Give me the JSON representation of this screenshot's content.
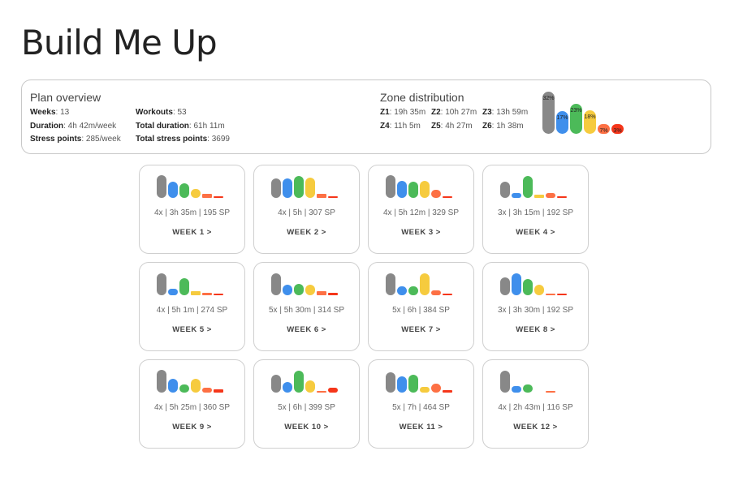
{
  "page": {
    "title": "Build Me Up"
  },
  "overview": {
    "heading": "Plan overview",
    "stats": [
      {
        "label": "Weeks",
        "value": "13"
      },
      {
        "label": "Workouts",
        "value": "53"
      },
      {
        "label": "Duration",
        "value": "4h 42m/week"
      },
      {
        "label": "Total duration",
        "value": "61h 11m"
      },
      {
        "label": "Stress points",
        "value": "285/week"
      },
      {
        "label": "Total stress points",
        "value": "3699"
      }
    ]
  },
  "zones": {
    "heading": "Zone distribution",
    "items": [
      {
        "label": "Z1",
        "value": "19h 35m"
      },
      {
        "label": "Z2",
        "value": "10h 27m"
      },
      {
        "label": "Z3",
        "value": "13h 59m"
      },
      {
        "label": "Z4",
        "value": "11h 5m"
      },
      {
        "label": "Z5",
        "value": "4h 27m"
      },
      {
        "label": "Z6",
        "value": "1h 38m"
      }
    ],
    "percentages": [
      "32%",
      "17%",
      "23%",
      "18%",
      "7%",
      "3%"
    ],
    "colors": [
      "#888888",
      "#3f8fec",
      "#4cba59",
      "#f6cb3e",
      "#fd7044",
      "#f5361a"
    ]
  },
  "weeks": [
    {
      "stats": "4x | 3h 35m | 195 SP",
      "link": "WEEK 1 >",
      "bars": [
        1.0,
        0.7,
        0.65,
        0.4,
        0.18,
        0.05
      ]
    },
    {
      "stats": "4x | 5h | 307 SP",
      "link": "WEEK 2 >",
      "bars": [
        0.85,
        0.85,
        0.95,
        0.9,
        0.18,
        0.05
      ]
    },
    {
      "stats": "4x | 5h 12m | 329 SP",
      "link": "WEEK 3 >",
      "bars": [
        1.0,
        0.75,
        0.7,
        0.75,
        0.35,
        0.05
      ]
    },
    {
      "stats": "3x | 3h 15m | 192 SP",
      "link": "WEEK 4 >",
      "bars": [
        0.7,
        0.2,
        0.95,
        0.15,
        0.2,
        0.05
      ]
    },
    {
      "stats": "4x | 5h 1m | 274 SP",
      "link": "WEEK 5 >",
      "bars": [
        0.95,
        0.3,
        0.75,
        0.18,
        0.12,
        0.05
      ]
    },
    {
      "stats": "5x | 5h 30m | 314 SP",
      "link": "WEEK 6 >",
      "bars": [
        0.95,
        0.45,
        0.5,
        0.45,
        0.18,
        0.1
      ]
    },
    {
      "stats": "5x | 6h | 384 SP",
      "link": "WEEK 7 >",
      "bars": [
        0.95,
        0.4,
        0.4,
        0.95,
        0.2,
        0.05
      ]
    },
    {
      "stats": "3x | 3h 30m | 192 SP",
      "link": "WEEK 8 >",
      "bars": [
        0.8,
        0.95,
        0.7,
        0.45,
        0.05,
        0.08
      ]
    },
    {
      "stats": "4x | 5h 25m | 360 SP",
      "link": "WEEK 9 >",
      "bars": [
        1.0,
        0.6,
        0.35,
        0.6,
        0.2,
        0.15
      ]
    },
    {
      "stats": "5x | 6h | 399 SP",
      "link": "WEEK 10 >",
      "bars": [
        0.8,
        0.45,
        0.95,
        0.55,
        0.05,
        0.2
      ]
    },
    {
      "stats": "5x | 7h | 464 SP",
      "link": "WEEK 11 >",
      "bars": [
        0.9,
        0.7,
        0.8,
        0.25,
        0.4,
        0.12
      ]
    },
    {
      "stats": "4x | 2h 43m | 116 SP",
      "link": "WEEK 12 >",
      "bars": [
        0.95,
        0.3,
        0.35,
        0.0,
        0.08,
        0.0
      ]
    }
  ]
}
